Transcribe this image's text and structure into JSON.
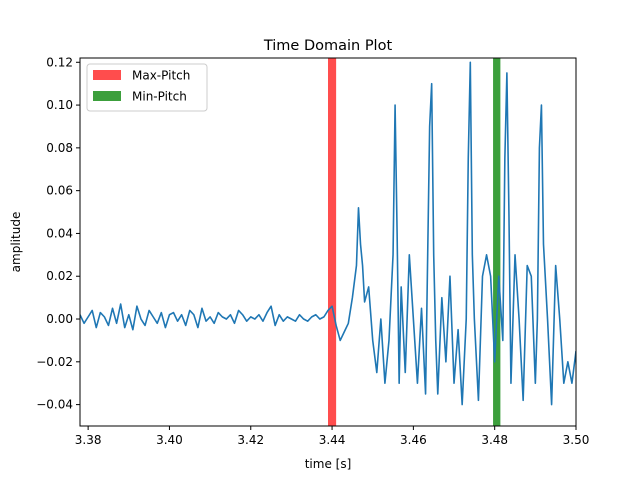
{
  "chart_data": {
    "type": "line",
    "title": "Time Domain Plot",
    "xlabel": "time [s]",
    "ylabel": "amplitude",
    "xlim": [
      3.378,
      3.5
    ],
    "ylim": [
      -0.05,
      0.122
    ],
    "xticks": [
      3.38,
      3.4,
      3.42,
      3.44,
      3.46,
      3.48,
      3.5
    ],
    "xtick_labels": [
      "3.38",
      "3.40",
      "3.42",
      "3.44",
      "3.46",
      "3.48",
      "3.50"
    ],
    "yticks": [
      -0.04,
      -0.02,
      0.0,
      0.02,
      0.04,
      0.06,
      0.08,
      0.1,
      0.12
    ],
    "ytick_labels": [
      "−0.04",
      "−0.02",
      "0.00",
      "0.02",
      "0.04",
      "0.06",
      "0.08",
      "0.10",
      "0.12"
    ],
    "grid": false,
    "legend_position": "top-left",
    "bands": [
      {
        "name": "Max-Pitch",
        "x_start": 3.439,
        "x_end": 3.441,
        "color": "#ff4d4d"
      },
      {
        "name": "Min-Pitch",
        "x_start": 3.4796,
        "x_end": 3.4814,
        "color": "#3c9f3c"
      }
    ],
    "series": [
      {
        "color": "#1f77b4",
        "x": [
          3.378,
          3.379,
          3.38,
          3.381,
          3.382,
          3.383,
          3.384,
          3.385,
          3.386,
          3.387,
          3.388,
          3.389,
          3.39,
          3.391,
          3.392,
          3.393,
          3.394,
          3.395,
          3.396,
          3.397,
          3.398,
          3.399,
          3.4,
          3.401,
          3.402,
          3.403,
          3.404,
          3.405,
          3.406,
          3.407,
          3.408,
          3.409,
          3.41,
          3.411,
          3.412,
          3.413,
          3.414,
          3.415,
          3.416,
          3.417,
          3.418,
          3.419,
          3.42,
          3.421,
          3.422,
          3.423,
          3.424,
          3.425,
          3.426,
          3.427,
          3.428,
          3.429,
          3.43,
          3.431,
          3.432,
          3.433,
          3.434,
          3.435,
          3.436,
          3.437,
          3.438,
          3.439,
          3.44,
          3.441,
          3.442,
          3.443,
          3.444,
          3.445,
          3.446,
          3.4465,
          3.447,
          3.4475,
          3.448,
          3.449,
          3.45,
          3.451,
          3.452,
          3.453,
          3.454,
          3.455,
          3.4555,
          3.456,
          3.4565,
          3.457,
          3.458,
          3.459,
          3.46,
          3.461,
          3.462,
          3.463,
          3.464,
          3.4645,
          3.465,
          3.4655,
          3.466,
          3.467,
          3.468,
          3.469,
          3.47,
          3.471,
          3.472,
          3.473,
          3.4735,
          3.474,
          3.4745,
          3.475,
          3.476,
          3.477,
          3.478,
          3.479,
          3.48,
          3.481,
          3.482,
          3.4825,
          3.483,
          3.4835,
          3.484,
          3.485,
          3.486,
          3.487,
          3.488,
          3.489,
          3.49,
          3.4905,
          3.491,
          3.4915,
          3.492,
          3.493,
          3.494,
          3.495,
          3.496,
          3.497,
          3.498,
          3.499,
          3.5
        ],
        "y": [
          0.002,
          -0.002,
          0.001,
          0.004,
          -0.004,
          0.003,
          0.001,
          -0.003,
          0.005,
          -0.002,
          0.007,
          -0.004,
          0.002,
          -0.005,
          0.006,
          0.0,
          -0.003,
          0.004,
          0.001,
          -0.002,
          0.003,
          -0.004,
          0.002,
          0.003,
          -0.001,
          0.002,
          -0.003,
          0.004,
          0.002,
          -0.004,
          0.005,
          -0.001,
          0.001,
          -0.002,
          0.003,
          0.001,
          0.0,
          0.002,
          -0.002,
          0.004,
          0.002,
          -0.001,
          0.001,
          0.0,
          0.002,
          -0.001,
          0.003,
          0.006,
          -0.003,
          0.002,
          -0.001,
          0.001,
          0.0,
          -0.001,
          0.002,
          0.0,
          -0.001,
          0.001,
          0.002,
          0.0,
          0.001,
          0.004,
          0.006,
          -0.003,
          -0.01,
          -0.006,
          -0.002,
          0.01,
          0.025,
          0.052,
          0.035,
          0.025,
          0.008,
          0.015,
          -0.01,
          -0.025,
          0.0,
          -0.03,
          -0.01,
          0.03,
          0.1,
          0.04,
          -0.03,
          0.015,
          -0.025,
          0.03,
          0.0,
          -0.03,
          0.005,
          -0.035,
          0.09,
          0.11,
          0.03,
          -0.01,
          -0.035,
          0.01,
          -0.02,
          0.02,
          -0.03,
          -0.005,
          -0.04,
          0.0,
          0.075,
          0.12,
          0.03,
          0.0,
          -0.038,
          0.02,
          0.03,
          0.02,
          -0.02,
          0.02,
          -0.01,
          0.075,
          0.115,
          0.05,
          -0.03,
          0.03,
          0.0,
          -0.038,
          0.025,
          0.02,
          -0.03,
          0.0,
          0.08,
          0.1,
          0.035,
          0.0,
          -0.04,
          0.025,
          0.0,
          -0.03,
          -0.02,
          -0.03,
          -0.015
        ]
      }
    ]
  }
}
